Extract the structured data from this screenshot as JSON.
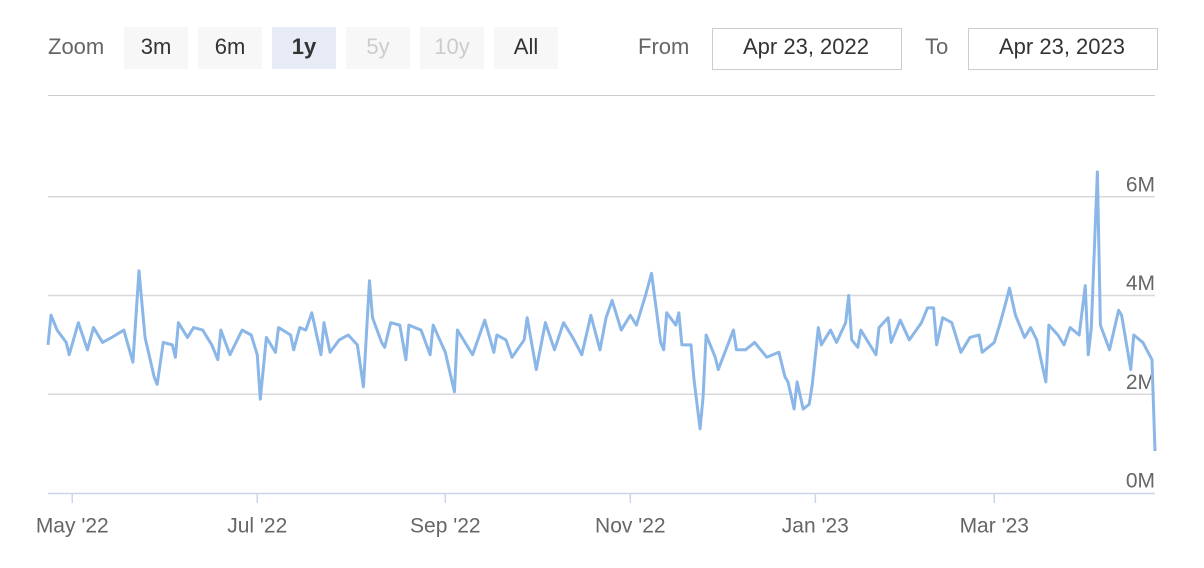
{
  "range_selector": {
    "label": "Zoom",
    "buttons": [
      {
        "label": "3m",
        "state": "normal"
      },
      {
        "label": "6m",
        "state": "normal"
      },
      {
        "label": "1y",
        "state": "selected"
      },
      {
        "label": "5y",
        "state": "disabled"
      },
      {
        "label": "10y",
        "state": "disabled"
      },
      {
        "label": "All",
        "state": "normal"
      }
    ],
    "from_label": "From",
    "from": "Apr 23, 2022",
    "to_label": "To",
    "to": "Apr 23, 2023"
  },
  "chart_data": {
    "type": "line",
    "color": "#8bb6e8",
    "grid": true,
    "xlim": [
      "2022-04-23",
      "2023-04-23"
    ],
    "xticks": [
      {
        "value": "2022-05-01",
        "label": "May '22"
      },
      {
        "value": "2022-07-01",
        "label": "Jul '22"
      },
      {
        "value": "2022-09-01",
        "label": "Sep '22"
      },
      {
        "value": "2022-11-01",
        "label": "Nov '22"
      },
      {
        "value": "2023-01-01",
        "label": "Jan '23"
      },
      {
        "value": "2023-03-01",
        "label": "Mar '23"
      }
    ],
    "ylim": [
      0,
      8000000
    ],
    "yticks": [
      {
        "value": 0,
        "label": "0M"
      },
      {
        "value": 2000000,
        "label": "2M"
      },
      {
        "value": 4000000,
        "label": "4M"
      },
      {
        "value": 6000000,
        "label": "6M"
      }
    ],
    "x": [
      "2022-04-23",
      "2022-04-24",
      "2022-04-26",
      "2022-04-29",
      "2022-04-30",
      "2022-05-03",
      "2022-05-06",
      "2022-05-08",
      "2022-05-11",
      "2022-05-14",
      "2022-05-18",
      "2022-05-21",
      "2022-05-23",
      "2022-05-25",
      "2022-05-28",
      "2022-05-29",
      "2022-05-31",
      "2022-06-03",
      "2022-06-04",
      "2022-06-05",
      "2022-06-08",
      "2022-06-10",
      "2022-06-13",
      "2022-06-16",
      "2022-06-18",
      "2022-06-19",
      "2022-06-22",
      "2022-06-26",
      "2022-06-29",
      "2022-07-01",
      "2022-07-02",
      "2022-07-04",
      "2022-07-07",
      "2022-07-08",
      "2022-07-12",
      "2022-07-13",
      "2022-07-15",
      "2022-07-17",
      "2022-07-19",
      "2022-07-22",
      "2022-07-23",
      "2022-07-25",
      "2022-07-28",
      "2022-07-31",
      "2022-08-03",
      "2022-08-05",
      "2022-08-07",
      "2022-08-08",
      "2022-08-11",
      "2022-08-12",
      "2022-08-14",
      "2022-08-17",
      "2022-08-19",
      "2022-08-20",
      "2022-08-24",
      "2022-08-27",
      "2022-08-28",
      "2022-09-01",
      "2022-09-04",
      "2022-09-05",
      "2022-09-08",
      "2022-09-10",
      "2022-09-14",
      "2022-09-17",
      "2022-09-18",
      "2022-09-21",
      "2022-09-23",
      "2022-09-27",
      "2022-09-28",
      "2022-10-01",
      "2022-10-04",
      "2022-10-07",
      "2022-10-10",
      "2022-10-13",
      "2022-10-16",
      "2022-10-19",
      "2022-10-22",
      "2022-10-24",
      "2022-10-26",
      "2022-10-29",
      "2022-11-01",
      "2022-11-03",
      "2022-11-06",
      "2022-11-08",
      "2022-11-11",
      "2022-11-12",
      "2022-11-13",
      "2022-11-16",
      "2022-11-17",
      "2022-11-18",
      "2022-11-21",
      "2022-11-22",
      "2022-11-24",
      "2022-11-25",
      "2022-11-26",
      "2022-11-29",
      "2022-11-30",
      "2022-12-05",
      "2022-12-06",
      "2022-12-09",
      "2022-12-12",
      "2022-12-16",
      "2022-12-20",
      "2022-12-22",
      "2022-12-23",
      "2022-12-25",
      "2022-12-26",
      "2022-12-28",
      "2022-12-30",
      "2022-12-31",
      "2023-01-02",
      "2023-01-03",
      "2023-01-06",
      "2023-01-08",
      "2023-01-11",
      "2023-01-12",
      "2023-01-13",
      "2023-01-15",
      "2023-01-16",
      "2023-01-21",
      "2023-01-22",
      "2023-01-25",
      "2023-01-26",
      "2023-01-29",
      "2023-02-01",
      "2023-02-05",
      "2023-02-07",
      "2023-02-09",
      "2023-02-10",
      "2023-02-12",
      "2023-02-15",
      "2023-02-18",
      "2023-02-21",
      "2023-02-24",
      "2023-02-25",
      "2023-03-01",
      "2023-03-03",
      "2023-03-05",
      "2023-03-06",
      "2023-03-08",
      "2023-03-11",
      "2023-03-13",
      "2023-03-15",
      "2023-03-18",
      "2023-03-19",
      "2023-03-22",
      "2023-03-24",
      "2023-03-26",
      "2023-03-29",
      "2023-03-31",
      "2023-04-01",
      "2023-04-02",
      "2023-04-04",
      "2023-04-05",
      "2023-04-08",
      "2023-04-11",
      "2023-04-12",
      "2023-04-15",
      "2023-04-16",
      "2023-04-19",
      "2023-04-22",
      "2023-04-23"
    ],
    "values": [
      3000000,
      3600000,
      3300000,
      3050000,
      2800000,
      3450000,
      2900000,
      3350000,
      3050000,
      3150000,
      3300000,
      2650000,
      4500000,
      3150000,
      2350000,
      2200000,
      3050000,
      3000000,
      2750000,
      3450000,
      3150000,
      3350000,
      3300000,
      3000000,
      2700000,
      3300000,
      2800000,
      3300000,
      3200000,
      2800000,
      1900000,
      3150000,
      2850000,
      3350000,
      3200000,
      2900000,
      3350000,
      3300000,
      3650000,
      2800000,
      3450000,
      2850000,
      3100000,
      3200000,
      3000000,
      2150000,
      4300000,
      3550000,
      3050000,
      2950000,
      3450000,
      3400000,
      2700000,
      3400000,
      3300000,
      2800000,
      3400000,
      2850000,
      2050000,
      3300000,
      3000000,
      2800000,
      3500000,
      2850000,
      3200000,
      3100000,
      2750000,
      3100000,
      3550000,
      2500000,
      3450000,
      2900000,
      3450000,
      3150000,
      2800000,
      3600000,
      2900000,
      3550000,
      3900000,
      3300000,
      3600000,
      3400000,
      4000000,
      4450000,
      3050000,
      2900000,
      3650000,
      3400000,
      3650000,
      3000000,
      3000000,
      2300000,
      1300000,
      1950000,
      3200000,
      2750000,
      2500000,
      3300000,
      2900000,
      2900000,
      3050000,
      2750000,
      2850000,
      2350000,
      2250000,
      1700000,
      2250000,
      1700000,
      1800000,
      2200000,
      3350000,
      3000000,
      3300000,
      3050000,
      3450000,
      4000000,
      3100000,
      2950000,
      3300000,
      2800000,
      3350000,
      3550000,
      3050000,
      3500000,
      3100000,
      3450000,
      3750000,
      3750000,
      3000000,
      3550000,
      3450000,
      2850000,
      3150000,
      3200000,
      2850000,
      3050000,
      3450000,
      3900000,
      4150000,
      3600000,
      3150000,
      3350000,
      3100000,
      2250000,
      3400000,
      3200000,
      3000000,
      3350000,
      3200000,
      4200000,
      2800000,
      3350000,
      6500000,
      3400000,
      2900000,
      3700000,
      3600000,
      2500000,
      3200000,
      3050000,
      2700000,
      850000
    ]
  }
}
